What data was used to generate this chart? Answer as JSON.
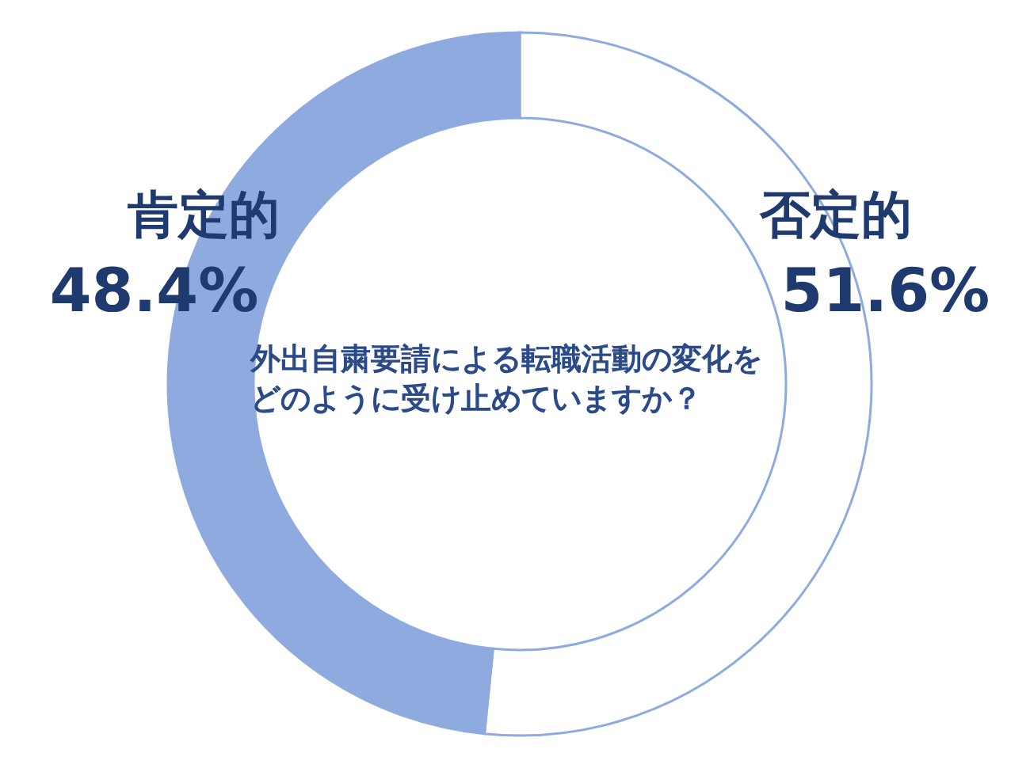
{
  "chart_data": {
    "type": "donut",
    "title": "外出自粛要請による転職活動の変化をどのように受け止めていますか？",
    "categories": [
      "否定的",
      "肯定的"
    ],
    "values": [
      51.6,
      48.4
    ],
    "value_labels": [
      "51.6%",
      "48.4%"
    ],
    "colors": [
      "#ffffff",
      "#8eaadf"
    ]
  }
}
